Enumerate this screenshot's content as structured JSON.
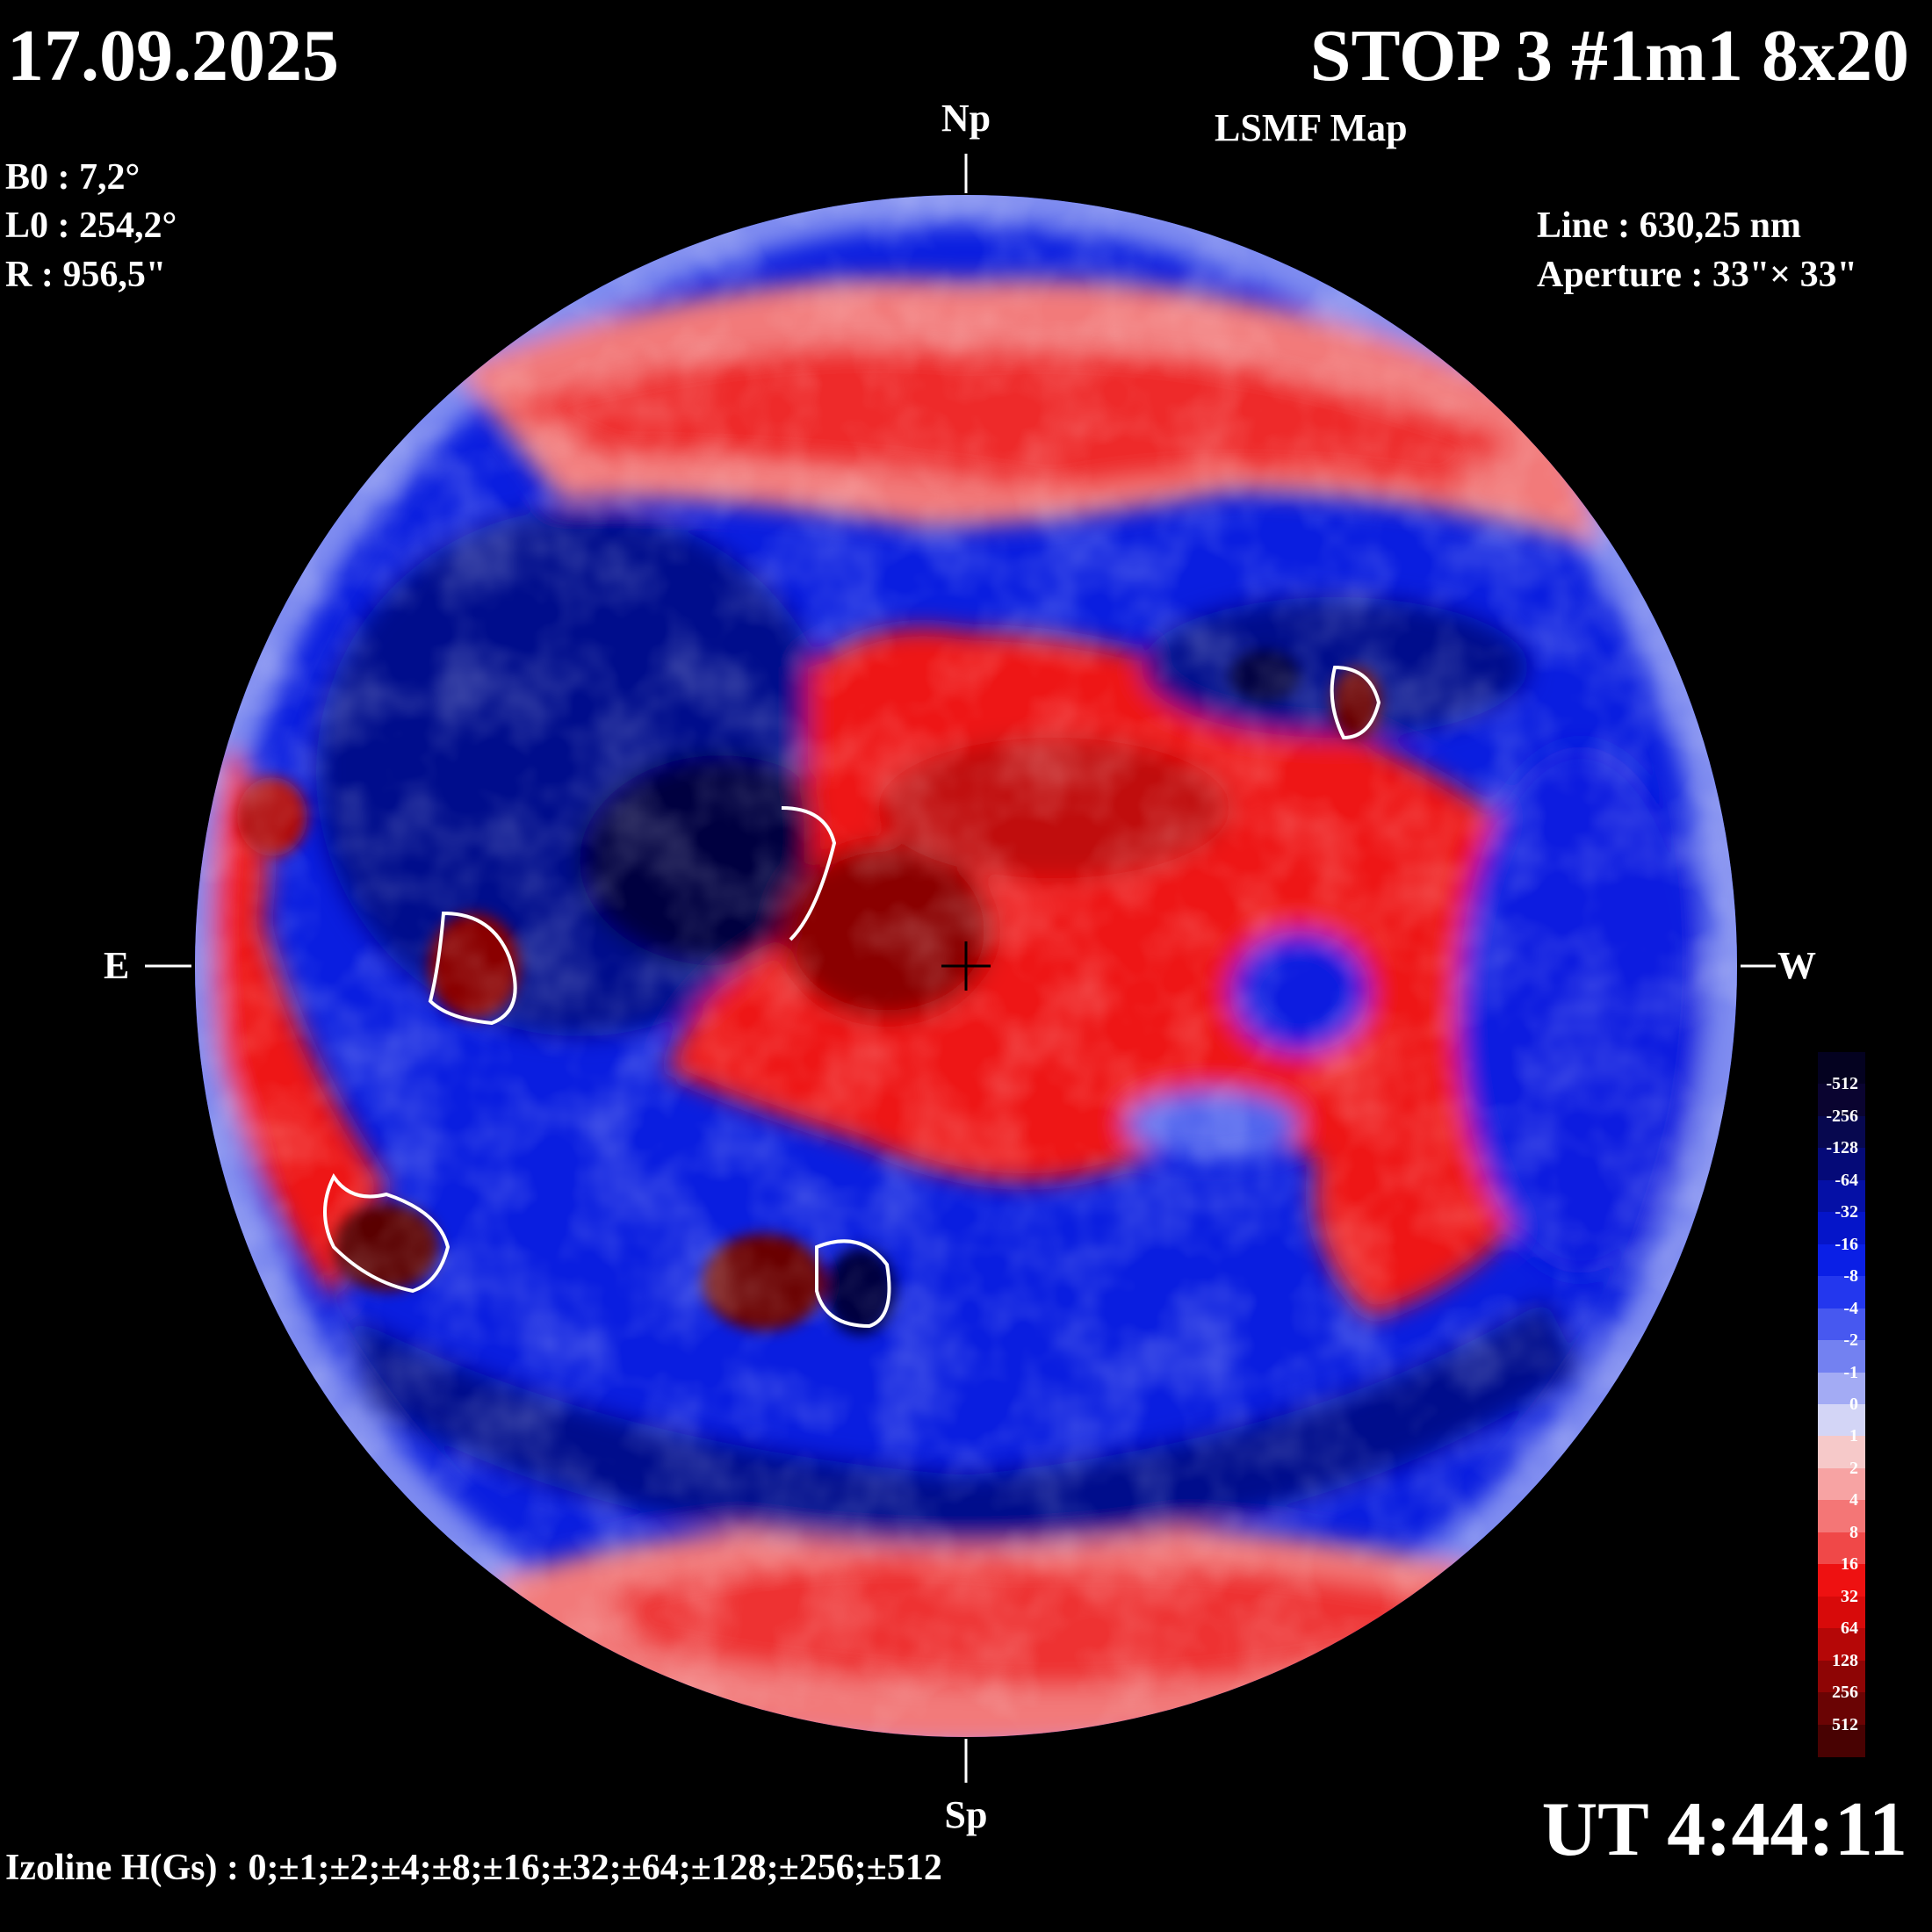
{
  "header": {
    "date": "17.09.2025",
    "title": "STOP 3 #1m1 8x20",
    "subtitle": "LSMF  Map"
  },
  "params": {
    "b0": "B0 : 7,2°",
    "l0": "L0 : 254,2°",
    "r": "R  : 956,5\""
  },
  "instrument": {
    "line": "Line :  630,25 nm",
    "aperture": "Aperture : 33\"× 33\""
  },
  "directions": {
    "north": "Np",
    "south": "Sp",
    "east": "E",
    "west": "W"
  },
  "time": "UT 4:44:11",
  "izoline": "Izoline H(Gs) : 0;±1;±2;±4;±8;±16;±32;±64;±128;±256;±512",
  "colorbar": {
    "labels": [
      "-512",
      "-256",
      "-128",
      "-64",
      "-32",
      "-16",
      "-8",
      "-4",
      "-2",
      "-1",
      "0",
      "1",
      "2",
      "4",
      "8",
      "16",
      "32",
      "64",
      "128",
      "256",
      "512"
    ],
    "colors": [
      "#0a0430",
      "#07084f",
      "#050a78",
      "#0510a6",
      "#0515c9",
      "#0a1fe6",
      "#2337ee",
      "#4758f0",
      "#7381f1",
      "#a3abf4",
      "#d3d5f6",
      "#f6c9c9",
      "#f7a3a3",
      "#f47676",
      "#f04848",
      "#ee1111",
      "#d80a0a",
      "#b50707",
      "#8e0505",
      "#6a0404",
      "#480202"
    ]
  },
  "map_colors": {
    "neg_deep": "#02063f",
    "neg_dark": "#050f8c",
    "neg_mid": "#0a1ee0",
    "neg_light": "#5366ee",
    "neg_pale": "#c9ccf5",
    "pos_pale": "#f3cbcb",
    "pos_light": "#f27a7a",
    "pos_mid": "#ee1414",
    "pos_dark": "#b00808",
    "pos_deep": "#4a0202"
  }
}
